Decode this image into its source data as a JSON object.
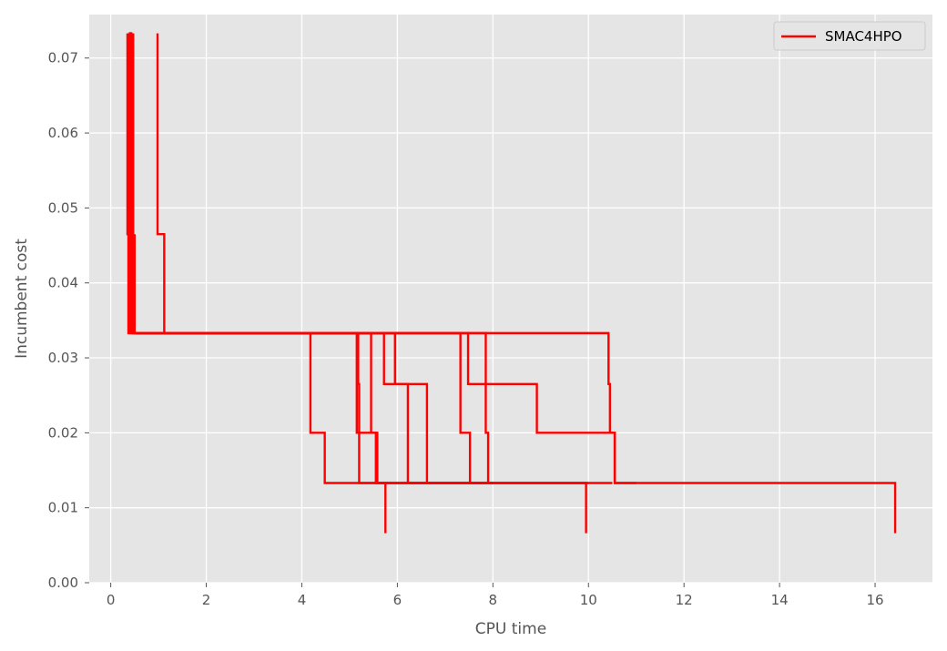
{
  "chart_data": {
    "type": "line",
    "xlabel": "CPU time",
    "ylabel": "Incumbent cost",
    "xlim": [
      -0.45,
      17.2
    ],
    "ylim": [
      0,
      0.0758
    ],
    "xticks": [
      0,
      2,
      4,
      6,
      8,
      10,
      12,
      14,
      16
    ],
    "yticks": [
      0.0,
      0.01,
      0.02,
      0.03,
      0.04,
      0.05,
      0.06,
      0.07
    ],
    "grid": true,
    "legend_position": "top-right",
    "colors": {
      "plot_background": "#e5e5e5",
      "grid": "#ffffff",
      "series": "#ff0000"
    },
    "series": [
      {
        "name": "SMAC4HPO",
        "step": "post",
        "runs": [
          [
            [
              0.35,
              0.0733
            ],
            [
              0.35,
              0.0465
            ],
            [
              0.37,
              0.0465
            ],
            [
              0.37,
              0.0333
            ],
            [
              0.42,
              0.0333
            ],
            [
              0.42,
              0.0733
            ],
            [
              0.43,
              0.0733
            ],
            [
              0.43,
              0.0333
            ],
            [
              10.42,
              0.0333
            ],
            [
              10.42,
              0.0265
            ],
            [
              10.45,
              0.0265
            ],
            [
              10.45,
              0.02
            ],
            [
              10.55,
              0.02
            ],
            [
              10.55,
              0.0133
            ],
            [
              16.42,
              0.0133
            ],
            [
              16.42,
              0.0066
            ]
          ],
          [
            [
              0.38,
              0.0733
            ],
            [
              0.38,
              0.0465
            ],
            [
              0.4,
              0.0465
            ],
            [
              0.4,
              0.0733
            ],
            [
              0.41,
              0.0733
            ],
            [
              0.41,
              0.0333
            ],
            [
              4.18,
              0.0333
            ],
            [
              4.18,
              0.02
            ],
            [
              4.48,
              0.02
            ],
            [
              4.48,
              0.0133
            ],
            [
              5.75,
              0.0133
            ],
            [
              5.75,
              0.0066
            ]
          ],
          [
            [
              0.45,
              0.0733
            ],
            [
              0.45,
              0.0465
            ],
            [
              0.46,
              0.0465
            ],
            [
              0.46,
              0.0333
            ],
            [
              5.15,
              0.0333
            ],
            [
              5.15,
              0.02
            ],
            [
              5.58,
              0.02
            ],
            [
              5.58,
              0.0133
            ],
            [
              9.95,
              0.0133
            ],
            [
              9.95,
              0.0066
            ]
          ],
          [
            [
              0.47,
              0.0733
            ],
            [
              0.47,
              0.0333
            ],
            [
              5.18,
              0.0333
            ],
            [
              5.18,
              0.0265
            ],
            [
              5.2,
              0.0265
            ],
            [
              5.2,
              0.0133
            ],
            [
              7.52,
              0.0133
            ]
          ],
          [
            [
              0.5,
              0.0465
            ],
            [
              0.5,
              0.0333
            ],
            [
              5.45,
              0.0333
            ],
            [
              5.45,
              0.02
            ],
            [
              5.55,
              0.02
            ],
            [
              5.55,
              0.0133
            ],
            [
              7.9,
              0.0133
            ]
          ],
          [
            [
              0.98,
              0.0733
            ],
            [
              0.98,
              0.0465
            ],
            [
              1.12,
              0.0465
            ],
            [
              1.12,
              0.0333
            ],
            [
              5.72,
              0.0333
            ],
            [
              5.72,
              0.0265
            ],
            [
              6.22,
              0.0265
            ],
            [
              6.22,
              0.0133
            ],
            [
              8.0,
              0.0133
            ]
          ],
          [
            [
              0.52,
              0.0333
            ],
            [
              5.95,
              0.0333
            ],
            [
              5.95,
              0.0265
            ],
            [
              6.62,
              0.0265
            ],
            [
              6.62,
              0.0133
            ],
            [
              8.0,
              0.0133
            ]
          ],
          [
            [
              0.53,
              0.0333
            ],
            [
              7.32,
              0.0333
            ],
            [
              7.32,
              0.02
            ],
            [
              7.52,
              0.02
            ],
            [
              7.52,
              0.0133
            ],
            [
              10.5,
              0.0133
            ]
          ],
          [
            [
              0.53,
              0.0333
            ],
            [
              7.48,
              0.0333
            ],
            [
              7.48,
              0.0265
            ],
            [
              8.92,
              0.0265
            ],
            [
              8.92,
              0.02
            ],
            [
              10.55,
              0.02
            ],
            [
              10.55,
              0.0133
            ],
            [
              11.0,
              0.0133
            ]
          ],
          [
            [
              0.53,
              0.0333
            ],
            [
              7.85,
              0.0333
            ],
            [
              7.85,
              0.02
            ],
            [
              7.9,
              0.02
            ],
            [
              7.9,
              0.0133
            ],
            [
              10.0,
              0.0133
            ]
          ]
        ]
      }
    ]
  }
}
